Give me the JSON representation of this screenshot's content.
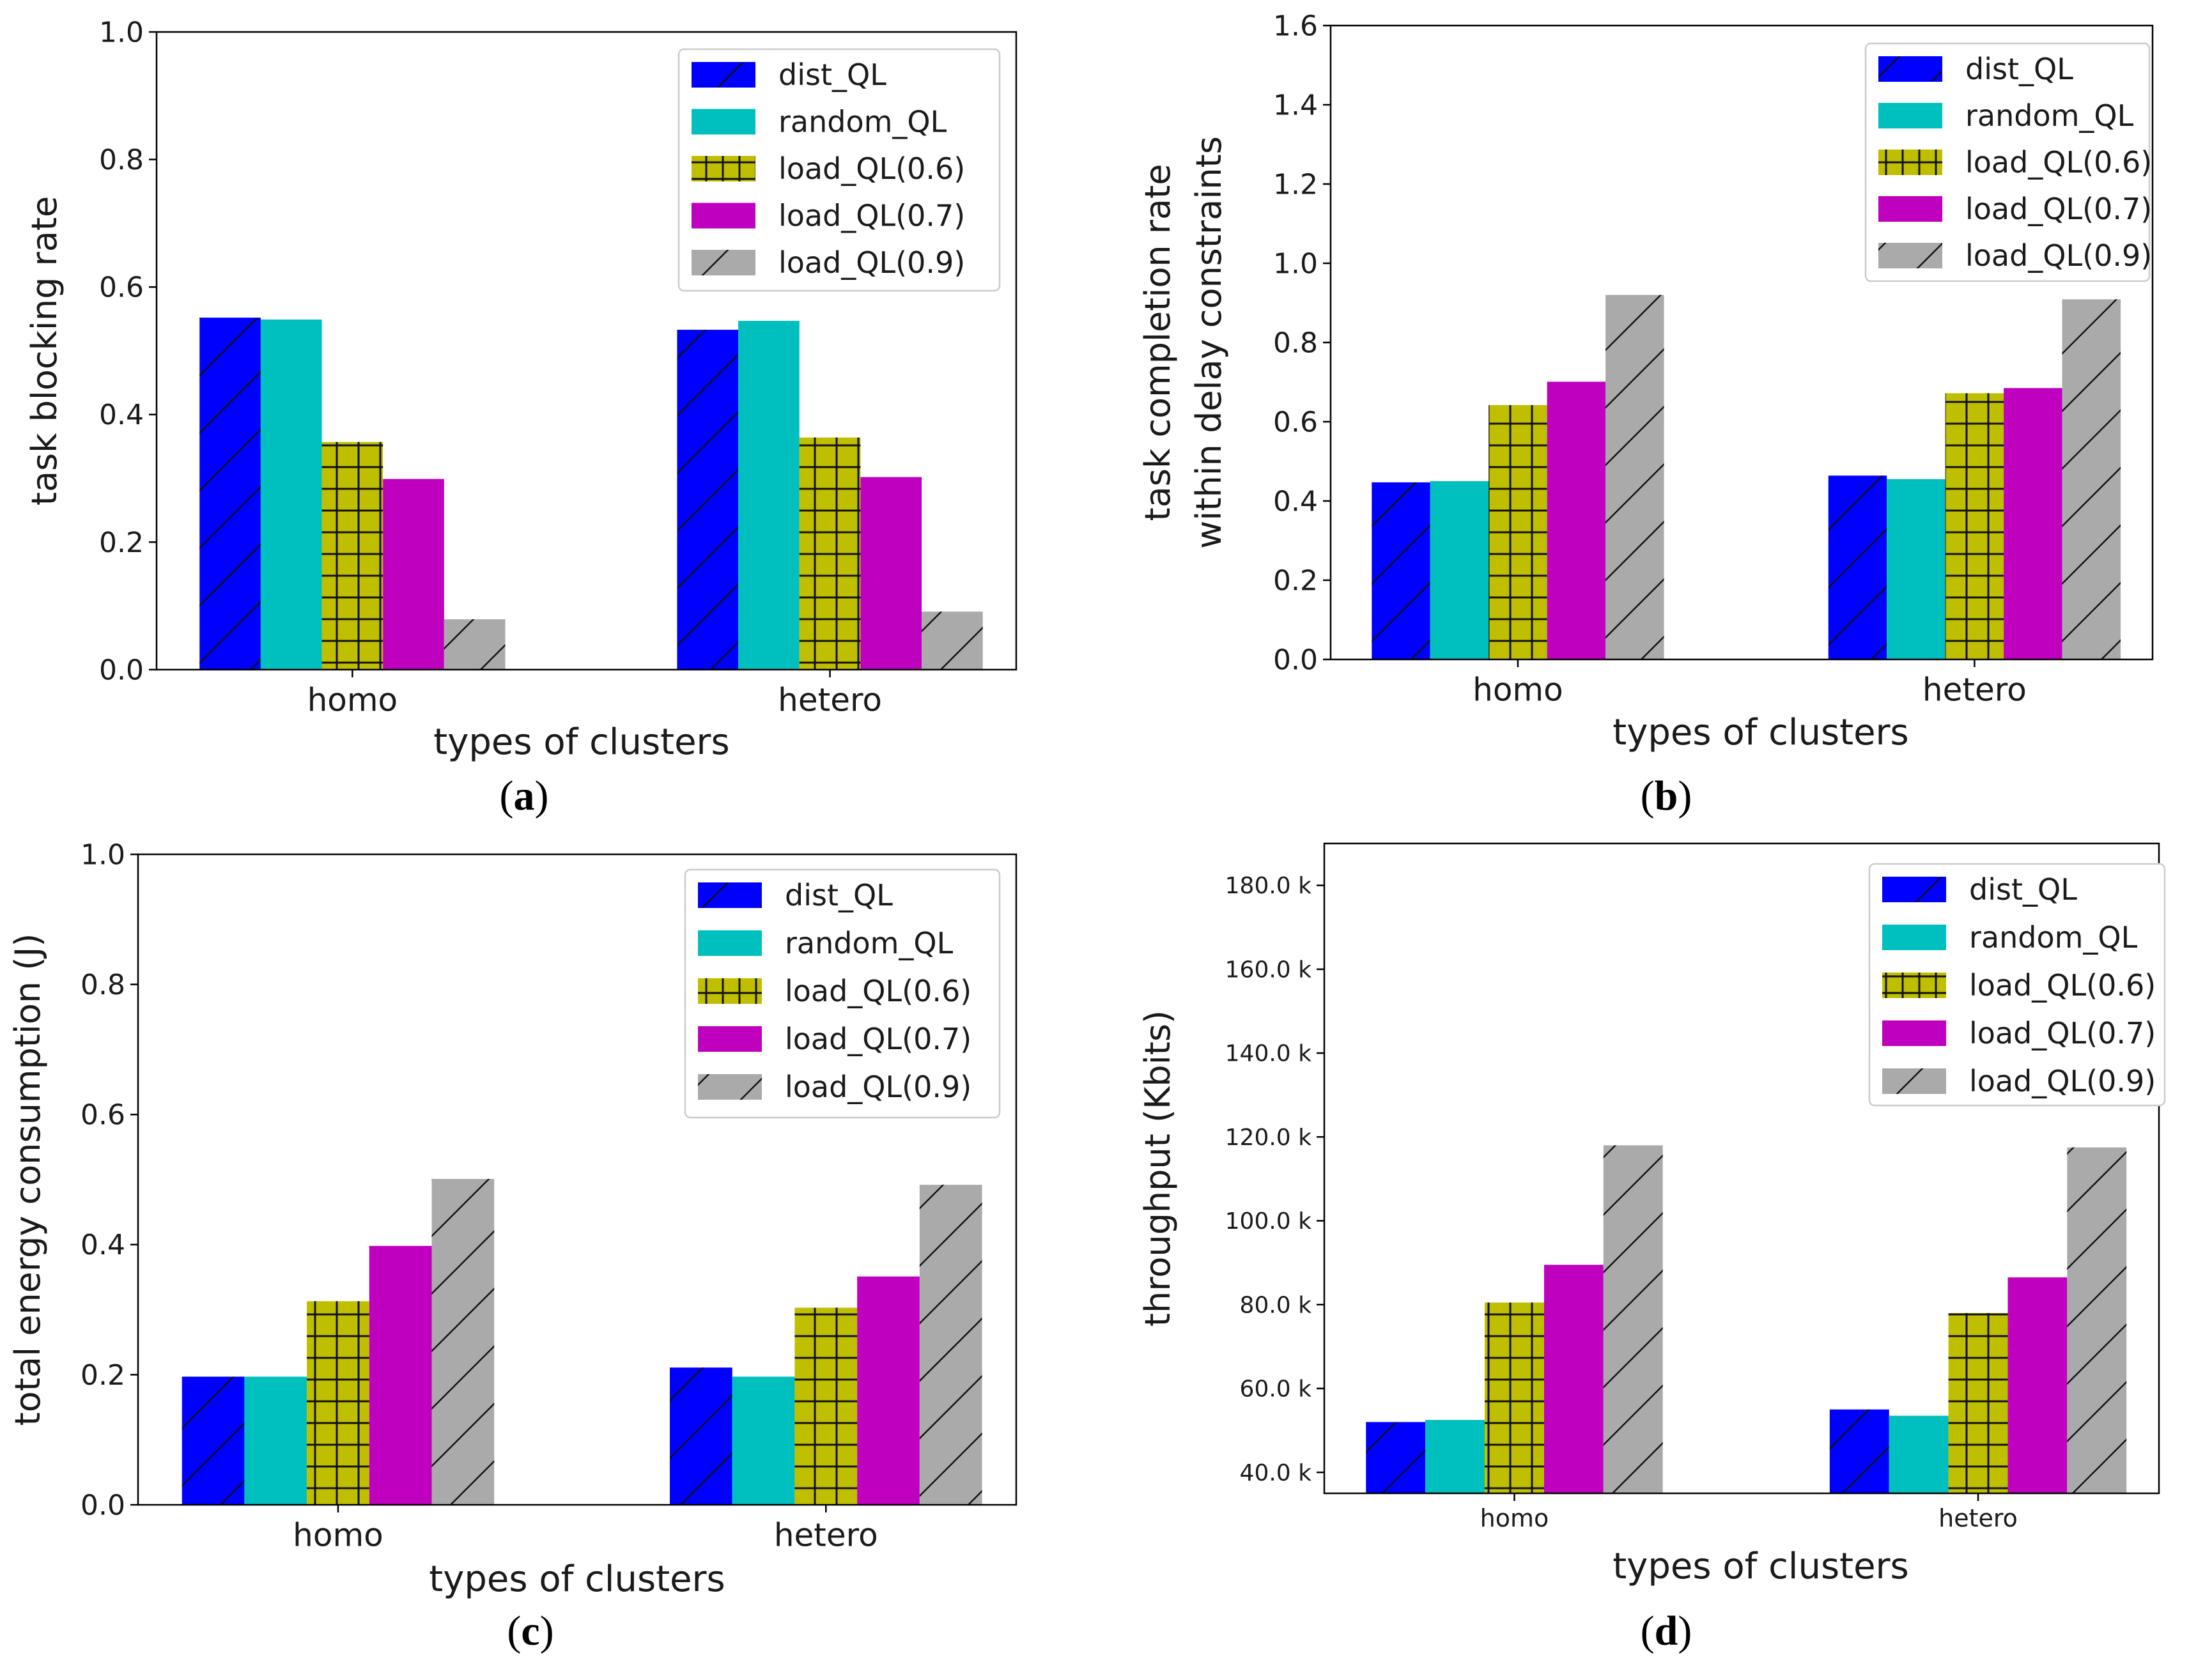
{
  "colors": {
    "dist_QL": "#0000ff",
    "random_QL": "#00bfbf",
    "load_QL(0.6)": "#bfbf00",
    "load_QL(0.7)": "#bf00bf",
    "load_QL(0.9)": "#aaaaaa"
  },
  "chart_data": [
    {
      "id": "a",
      "caption_letter": "a",
      "type": "bar",
      "title": "",
      "xlabel": "types of clusters",
      "ylabel": [
        "task blocking rate"
      ],
      "categories": [
        "homo",
        "hetero"
      ],
      "ylim": [
        0,
        1.0
      ],
      "yticks": [
        0.0,
        0.2,
        0.4,
        0.6,
        0.8,
        1.0
      ],
      "ytick_labels": [
        "0.0",
        "0.2",
        "0.4",
        "0.6",
        "0.8",
        "1.0"
      ],
      "legend_position": "top-right",
      "series": [
        {
          "name": "dist_QL",
          "values": [
            0.552,
            0.533
          ]
        },
        {
          "name": "random_QL",
          "values": [
            0.549,
            0.547
          ]
        },
        {
          "name": "load_QL(0.6)",
          "values": [
            0.357,
            0.364
          ]
        },
        {
          "name": "load_QL(0.7)",
          "values": [
            0.299,
            0.302
          ]
        },
        {
          "name": "load_QL(0.9)",
          "values": [
            0.079,
            0.091
          ]
        }
      ]
    },
    {
      "id": "b",
      "caption_letter": "b",
      "type": "bar",
      "title": "",
      "xlabel": "types of clusters",
      "ylabel": [
        "task completion rate",
        "within delay constraints"
      ],
      "categories": [
        "homo",
        "hetero"
      ],
      "ylim": [
        0,
        1.6
      ],
      "yticks": [
        0.0,
        0.2,
        0.4,
        0.6,
        0.8,
        1.0,
        1.2,
        1.4,
        1.6
      ],
      "ytick_labels": [
        "0.0",
        "0.2",
        "0.4",
        "0.6",
        "0.8",
        "1.0",
        "1.2",
        "1.4",
        "1.6"
      ],
      "legend_position": "top-right",
      "series": [
        {
          "name": "dist_QL",
          "values": [
            0.447,
            0.464
          ]
        },
        {
          "name": "random_QL",
          "values": [
            0.45,
            0.455
          ]
        },
        {
          "name": "load_QL(0.6)",
          "values": [
            0.642,
            0.672
          ]
        },
        {
          "name": "load_QL(0.7)",
          "values": [
            0.701,
            0.685
          ]
        },
        {
          "name": "load_QL(0.9)",
          "values": [
            0.92,
            0.909
          ]
        }
      ]
    },
    {
      "id": "c",
      "caption_letter": "c",
      "type": "bar",
      "title": "",
      "xlabel": "types of clusters",
      "ylabel": [
        "total energy consumption (J)"
      ],
      "categories": [
        "homo",
        "hetero"
      ],
      "ylim": [
        0,
        1.0
      ],
      "yticks": [
        0.0,
        0.2,
        0.4,
        0.6,
        0.8,
        1.0
      ],
      "ytick_labels": [
        "0.0",
        "0.2",
        "0.4",
        "0.6",
        "0.8",
        "1.0"
      ],
      "legend_position": "top-right",
      "series": [
        {
          "name": "dist_QL",
          "values": [
            0.197,
            0.211
          ]
        },
        {
          "name": "random_QL",
          "values": [
            0.197,
            0.197
          ]
        },
        {
          "name": "load_QL(0.6)",
          "values": [
            0.313,
            0.303
          ]
        },
        {
          "name": "load_QL(0.7)",
          "values": [
            0.398,
            0.351
          ]
        },
        {
          "name": "load_QL(0.9)",
          "values": [
            0.501,
            0.492
          ]
        }
      ]
    },
    {
      "id": "d",
      "caption_letter": "d",
      "type": "bar",
      "title": "",
      "xlabel": "types of clusters",
      "ylabel": [
        "throughput (Kbits)"
      ],
      "categories": [
        "homo",
        "hetero"
      ],
      "ylim": [
        35000,
        190000
      ],
      "yticks": [
        40000,
        60000,
        80000,
        100000,
        120000,
        140000,
        160000,
        180000
      ],
      "ytick_labels": [
        "40.0 k",
        "60.0 k",
        "80.0 k",
        "100.0 k",
        "120.0 k",
        "140.0 k",
        "160.0 k",
        "180.0 k"
      ],
      "legend_position": "top-right",
      "series": [
        {
          "name": "dist_QL",
          "values": [
            52000,
            55000
          ]
        },
        {
          "name": "random_QL",
          "values": [
            52500,
            53500
          ]
        },
        {
          "name": "load_QL(0.6)",
          "values": [
            80500,
            78000
          ]
        },
        {
          "name": "load_QL(0.7)",
          "values": [
            89500,
            86500
          ]
        },
        {
          "name": "load_QL(0.9)",
          "values": [
            118000,
            117500
          ]
        }
      ]
    }
  ]
}
